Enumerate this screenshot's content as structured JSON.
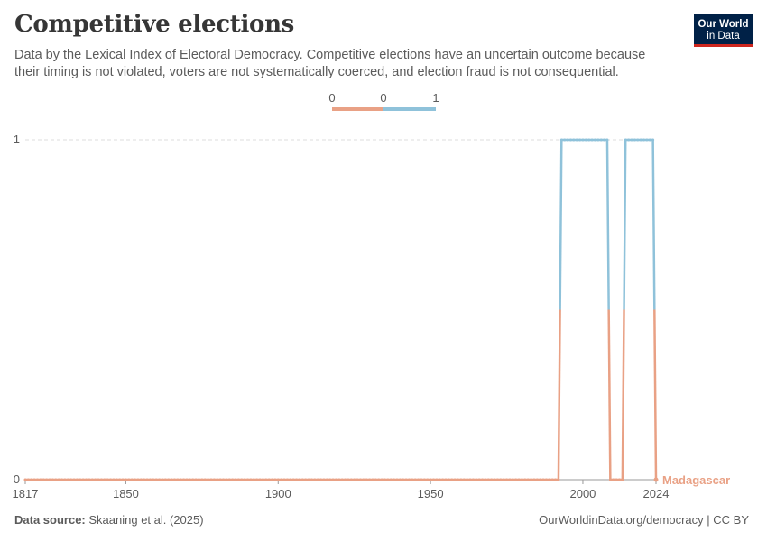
{
  "header": {
    "title": "Competitive elections",
    "subtitle": "Data by the Lexical Index of Electoral Democracy. Competitive elections have an uncertain outcome because their timing is not violated, voters are not systematically coerced, and election fraud is not consequential.",
    "logo_line1": "Our World",
    "logo_line2": "in Data"
  },
  "legend": {
    "labels": [
      "0",
      "0",
      "1"
    ],
    "colors": [
      "#e9a185",
      "#e9a185",
      "#8fc2da"
    ]
  },
  "colors": {
    "low": "#e9a185",
    "high": "#8fc2da",
    "grid": "#dddddd",
    "axis": "#999999"
  },
  "chart_data": {
    "type": "line",
    "title": "Competitive elections",
    "xlim": [
      1817,
      2024
    ],
    "ylim": [
      0,
      1
    ],
    "x_ticks": [
      "1817",
      "1850",
      "1900",
      "1950",
      "2000",
      "2024"
    ],
    "y_ticks": [
      "0",
      "1"
    ],
    "series": [
      {
        "name": "Madagascar",
        "segments": [
          {
            "from": 1817,
            "to": 1992,
            "value": 0
          },
          {
            "from": 1993,
            "to": 2008,
            "value": 1
          },
          {
            "from": 2009,
            "to": 2013,
            "value": 0
          },
          {
            "from": 2014,
            "to": 2023,
            "value": 1
          },
          {
            "from": 2024,
            "to": 2024,
            "value": 0
          }
        ]
      }
    ]
  },
  "footer": {
    "source_label": "Data source:",
    "source_text": "Skaaning et al. (2025)",
    "url": "OurWorldinData.org/democracy | CC BY"
  }
}
